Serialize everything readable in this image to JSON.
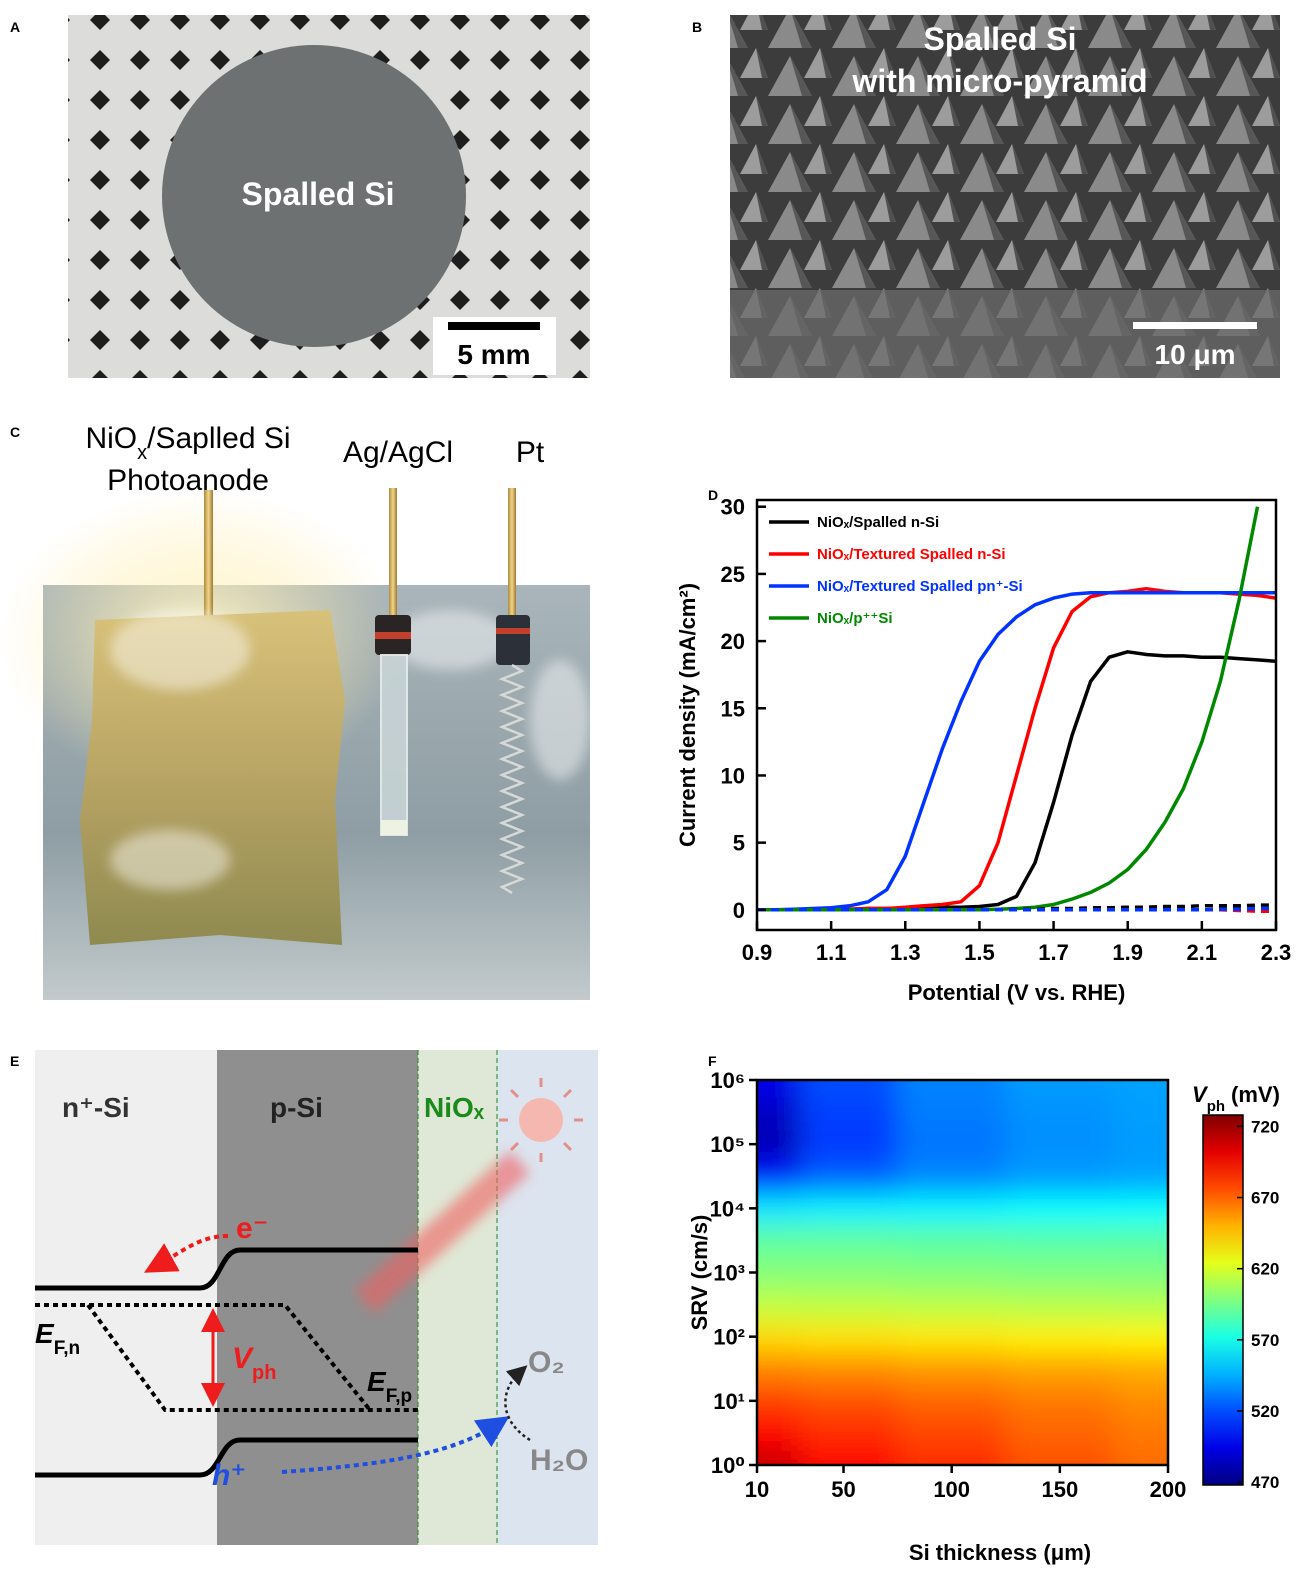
{
  "panels": {
    "A": {
      "label": "A",
      "text": "Spalled Si",
      "scale_bar": "5 mm"
    },
    "B": {
      "label": "B",
      "title_lines": [
        "Spalled Si",
        "with micro-pyramid"
      ],
      "scale_bar": "10 μm"
    },
    "C": {
      "label": "C",
      "photoanode": [
        "NiO",
        "x",
        "/Saplled Si"
      ],
      "photoanode_line2": "Photoanode",
      "reference": "Ag/AgCl",
      "counter": "Pt"
    },
    "E": {
      "label": "E",
      "n_si": "n⁺-Si",
      "p_si": "p-Si",
      "nio": "NiOₓ",
      "electron": "e⁻",
      "hole": "h⁺",
      "efn": [
        "E",
        "F,n"
      ],
      "efp": [
        "E",
        "F,p"
      ],
      "vph": [
        "V",
        "ph"
      ],
      "o2": "O₂",
      "h2o": "H₂O"
    }
  },
  "chart_data": [
    {
      "type": "line",
      "panel_label": "D",
      "xlabel": "Potential (V vs. RHE)",
      "ylabel": "Current density (mA/cm²)",
      "x": [
        0.9,
        0.95,
        1.0,
        1.05,
        1.1,
        1.15,
        1.2,
        1.25,
        1.3,
        1.35,
        1.4,
        1.45,
        1.5,
        1.55,
        1.6,
        1.65,
        1.7,
        1.75,
        1.8,
        1.85,
        1.9,
        1.95,
        2.0,
        2.05,
        2.1,
        2.15,
        2.2,
        2.25,
        2.3
      ],
      "series": [
        {
          "name": "NiOₓ/Spalled n-Si",
          "color": "#000000",
          "values": [
            0,
            0,
            0,
            0,
            0,
            0.05,
            0.1,
            0.1,
            0.1,
            0.15,
            0.2,
            0.2,
            0.25,
            0.4,
            1,
            3.5,
            8,
            13,
            17,
            18.8,
            19.2,
            19,
            18.9,
            18.9,
            18.8,
            18.8,
            18.7,
            18.6,
            18.5
          ]
        },
        {
          "name": "NiOₓ/Textured Spalled n-Si",
          "color": "#ff0000",
          "values": [
            0,
            0,
            0,
            0,
            0,
            0.05,
            0.1,
            0.1,
            0.2,
            0.3,
            0.4,
            0.6,
            1.8,
            5,
            10,
            15,
            19.5,
            22.2,
            23.3,
            23.6,
            23.7,
            23.9,
            23.7,
            23.6,
            23.6,
            23.6,
            23.5,
            23.4,
            23.2
          ]
        },
        {
          "name": "NiOₓ/Textured Spalled pn⁺-Si",
          "color": "#0033ff",
          "values": [
            0,
            0,
            0.05,
            0.1,
            0.15,
            0.3,
            0.6,
            1.5,
            4,
            8,
            12,
            15.5,
            18.5,
            20.5,
            21.8,
            22.7,
            23.2,
            23.5,
            23.6,
            23.6,
            23.6,
            23.6,
            23.6,
            23.6,
            23.6,
            23.6,
            23.6,
            23.6,
            23.6
          ]
        },
        {
          "name": "NiOₓ/p⁺⁺Si",
          "color": "#008800",
          "values": [
            0,
            0,
            0,
            0,
            0,
            0,
            0,
            0,
            0,
            0,
            0,
            0,
            0,
            0.05,
            0.1,
            0.2,
            0.4,
            0.8,
            1.3,
            2,
            3,
            4.5,
            6.5,
            9,
            12.5,
            17,
            23,
            30,
            null
          ]
        },
        {
          "color": "#000000",
          "linestyle": "dashed",
          "values": [
            0,
            0,
            0,
            0,
            0,
            0,
            0,
            0,
            0,
            0,
            0,
            0,
            0,
            0,
            0.05,
            0.05,
            0.1,
            0.1,
            0.15,
            0.15,
            0.2,
            0.2,
            0.25,
            0.25,
            0.3,
            0.3,
            0.3,
            0.35,
            0.35
          ]
        },
        {
          "color": "#ff0000",
          "linestyle": "dashed",
          "values": [
            0,
            0,
            0,
            0,
            0,
            0,
            0,
            0,
            0,
            0,
            0,
            0,
            0,
            0,
            0,
            0,
            0,
            0,
            0,
            0,
            0,
            0,
            0,
            0,
            0,
            0,
            -0.05,
            -0.1,
            -0.1
          ]
        },
        {
          "color": "#0033ff",
          "linestyle": "dashed",
          "values": [
            0,
            0,
            0,
            0,
            0,
            0,
            0,
            0,
            0,
            0,
            0,
            0,
            0,
            0,
            0,
            0,
            0,
            0,
            0,
            0,
            0,
            0,
            0,
            0,
            0,
            0.05,
            0.05,
            0.1,
            0.1
          ]
        }
      ],
      "xlim": [
        0.9,
        2.3
      ],
      "xticks": [
        0.9,
        1.1,
        1.3,
        1.5,
        1.7,
        1.9,
        2.1,
        2.3
      ],
      "ylim": [
        -1.5,
        30.5
      ],
      "yticks": [
        0,
        5,
        10,
        15,
        20,
        25,
        30
      ],
      "legend": "upper left"
    },
    {
      "type": "heatmap",
      "panel_label": "F",
      "xlabel": "Si thickness (μm)",
      "ylabel": "SRV (cm/s)",
      "x": [
        10,
        50,
        100,
        150,
        200
      ],
      "y": [
        1,
        3.16,
        10,
        31.6,
        100,
        316,
        1000,
        3160,
        10000,
        31600,
        100000,
        316000,
        1000000
      ],
      "z": [
        [
          710,
          695,
          685,
          675,
          668
        ],
        [
          695,
          685,
          678,
          670,
          665
        ],
        [
          680,
          675,
          670,
          665,
          660
        ],
        [
          662,
          660,
          657,
          654,
          652
        ],
        [
          640,
          638,
          636,
          634,
          633
        ],
        [
          615,
          614,
          613,
          612,
          611
        ],
        [
          600,
          600,
          599,
          598,
          598
        ],
        [
          590,
          590,
          589,
          588,
          588
        ],
        [
          560,
          562,
          563,
          565,
          566
        ],
        [
          505,
          525,
          535,
          540,
          542
        ],
        [
          482,
          515,
          530,
          537,
          540
        ],
        [
          485,
          517,
          532,
          538,
          541
        ],
        [
          495,
          520,
          534,
          540,
          542
        ]
      ],
      "xlim": [
        10,
        200
      ],
      "xticks": [
        10,
        50,
        100,
        150,
        200
      ],
      "ylim": [
        1,
        1000000
      ],
      "yscale": "log",
      "yticks": [
        {
          "value": 1,
          "label": "10⁰"
        },
        {
          "value": 10,
          "label": "10¹"
        },
        {
          "value": 100,
          "label": "10²"
        },
        {
          "value": 1000,
          "label": "10³"
        },
        {
          "value": 10000,
          "label": "10⁴"
        },
        {
          "value": 100000,
          "label": "10⁵"
        },
        {
          "value": 1000000,
          "label": "10⁶"
        }
      ],
      "colormap": "jet",
      "colorbar": {
        "label": [
          "V",
          "ph",
          "(mV)"
        ],
        "clim": [
          468,
          728
        ],
        "ticks": [
          470,
          520,
          570,
          620,
          670,
          720
        ]
      }
    }
  ]
}
